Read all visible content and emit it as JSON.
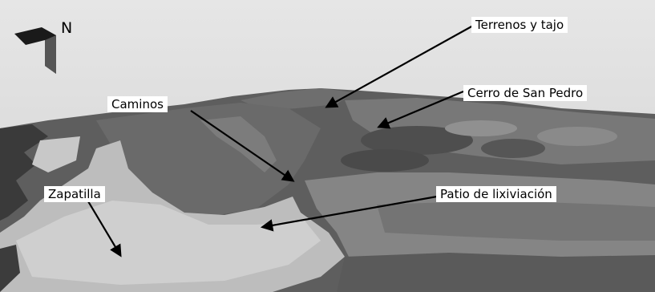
{
  "compass": {
    "label": "N",
    "icon": "north-arrow-icon"
  },
  "labels": {
    "terrenos_tajo": "Terrenos y tajo",
    "cerro_san_pedro": "Cerro de San Pedro",
    "caminos": "Caminos",
    "zapatilla": "Zapatilla",
    "patio_lixiviacion": "Patio de lixiviación"
  },
  "colors": {
    "sky": "#dcdcdc",
    "label_background": "#ffffff",
    "arrow": "#000000"
  }
}
